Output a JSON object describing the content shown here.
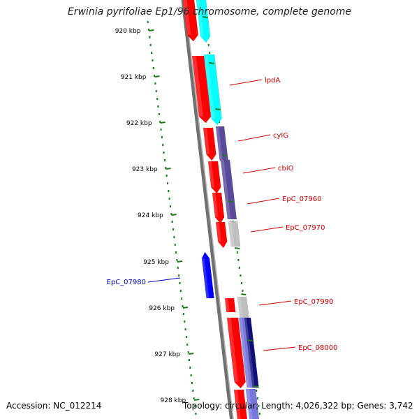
{
  "title": "Erwinia pyrifoliae Ep1/96 chromosome, complete genome",
  "footer": {
    "accession": "Accession: NC_012214",
    "summary": "Topology: circular; Length: 4,026,322 bp; Genes: 3,742"
  },
  "colors": {
    "backbone": "#707070",
    "backbone_light": "#b0b0b0",
    "tick": "#1a7a1a",
    "label_red": "#cc0000",
    "label_blue": "#0000cc",
    "cds_red": "#ff0000",
    "cds_cyan": "#00ffff",
    "cds_purple": "#5a4a9a",
    "cds_gray": "#c0c0c0",
    "cds_blue": "#0000ff",
    "cds_navy": "#10107a",
    "cds_lavender": "#7777dd"
  },
  "ticks": [
    {
      "label": "920 kbp"
    },
    {
      "label": "921 kbp"
    },
    {
      "label": "922 kbp"
    },
    {
      "label": "923 kbp"
    },
    {
      "label": "924 kbp"
    },
    {
      "label": "925 kbp"
    },
    {
      "label": "926 kbp"
    },
    {
      "label": "927 kbp"
    },
    {
      "label": "928 kbp"
    }
  ],
  "gene_labels": [
    {
      "name": "lpdA",
      "color": "label_red"
    },
    {
      "name": "cyIG",
      "color": "label_red"
    },
    {
      "name": "cbiO",
      "color": "label_red"
    },
    {
      "name": "EpC_07960",
      "color": "label_red"
    },
    {
      "name": "EpC_07970",
      "color": "label_red"
    },
    {
      "name": "EpC_07980",
      "color": "label_blue"
    },
    {
      "name": "EpC_07990",
      "color": "label_red"
    },
    {
      "name": "EpC_08000",
      "color": "label_red"
    }
  ]
}
